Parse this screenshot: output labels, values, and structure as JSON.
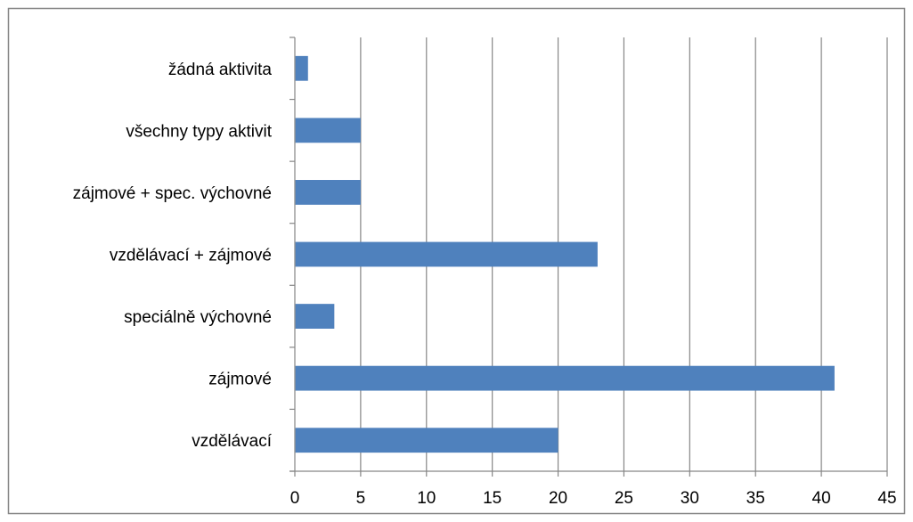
{
  "chart_data": {
    "type": "bar",
    "orientation": "horizontal",
    "categories": [
      "vzdělávací",
      "zájmové",
      "speciálně výchovné",
      "vzdělávací + zájmové",
      "zájmové + spec. výchovné",
      "všechny typy aktivit",
      "žádná aktivita"
    ],
    "values": [
      20,
      41,
      3,
      23,
      5,
      5,
      1
    ],
    "title": "",
    "xlabel": "",
    "ylabel": "",
    "xlim": [
      0,
      45
    ],
    "x_ticks": [
      0,
      5,
      10,
      15,
      20,
      25,
      30,
      35,
      40,
      45
    ],
    "grid": "vertical",
    "legend": "none",
    "bar_color": "#4F81BD",
    "grid_color": "#868686",
    "border_color": "#868686"
  }
}
